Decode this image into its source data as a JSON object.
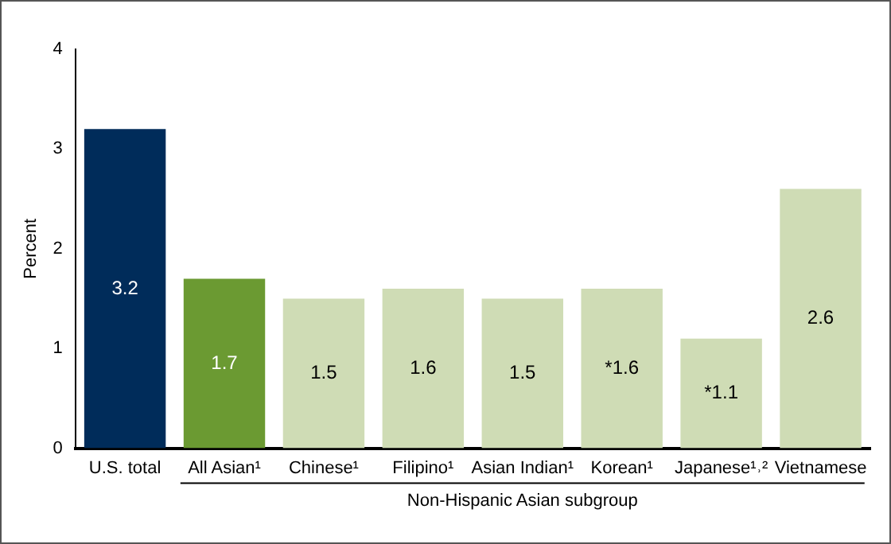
{
  "chart_data": {
    "type": "bar",
    "ylabel": "Percent",
    "xlabel": "Non-Hispanic Asian subgroup",
    "categories": [
      "U.S. total",
      "All Asian¹",
      "Chinese¹",
      "Filipino¹",
      "Asian Indian¹",
      "Korean¹",
      "Japanese¹˒²",
      "Vietnamese"
    ],
    "values": [
      3.2,
      1.7,
      1.5,
      1.6,
      1.5,
      1.6,
      1.1,
      2.6
    ],
    "value_labels": [
      "3.2",
      "1.7",
      "1.5",
      "1.6",
      "1.5",
      "*1.6",
      "*1.1",
      "2.6"
    ],
    "colors": [
      "#002c5a",
      "#6b9a32",
      "#cfdcb5",
      "#cfdcb5",
      "#cfdcb5",
      "#cfdcb5",
      "#cfdcb5",
      "#cfdcb5"
    ],
    "ylim": [
      0,
      4
    ],
    "yticks": [
      0,
      1,
      2,
      3,
      4
    ],
    "grid": false,
    "legend": false
  }
}
